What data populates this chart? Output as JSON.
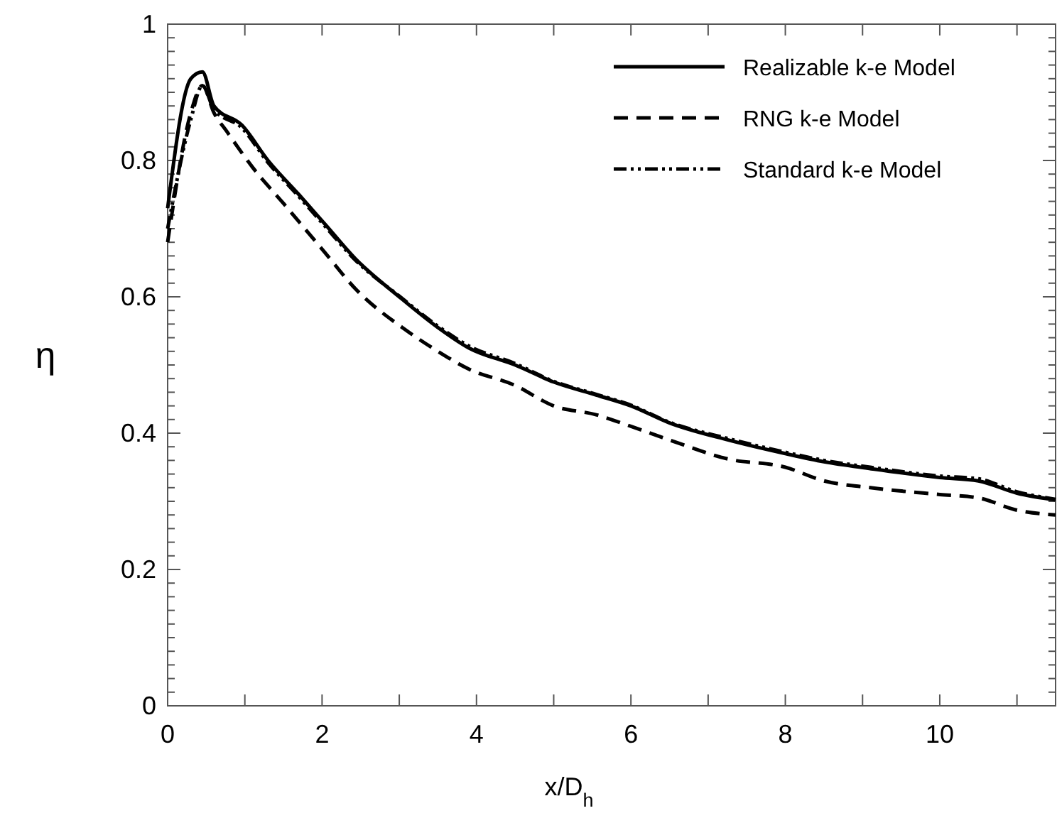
{
  "chart_data": {
    "type": "line",
    "xlabel": "x/D$_{h}$",
    "ylabel": "η",
    "xlim": [
      0,
      11.5
    ],
    "ylim": [
      0,
      1
    ],
    "xticks": [
      0,
      {
        "value": 1,
        "label": null
      },
      2,
      {
        "value": 3,
        "label": null
      },
      4,
      {
        "value": 5,
        "label": null
      },
      6,
      {
        "value": 7,
        "label": null
      },
      8,
      {
        "value": 9,
        "label": null
      },
      10,
      {
        "value": 11,
        "label": null
      }
    ],
    "yticks": [
      0,
      0.2,
      0.4,
      0.6,
      0.8,
      1
    ],
    "grid": false,
    "legend": "top right",
    "marker": "none",
    "series": [
      {
        "name": "Realizable k-e Model",
        "color": "#000000",
        "line_style": "solid",
        "x": [
          0,
          0.3,
          0.45,
          0.6,
          0.96,
          1.3,
          1.7,
          2.05,
          2.43,
          3,
          3.5,
          3.9,
          4.5,
          5,
          5.55,
          6,
          6.5,
          7.26,
          8,
          8.5,
          9.1,
          10,
          10.5,
          11,
          11.5
        ],
        "values": [
          0.73,
          0.92,
          0.93,
          0.88,
          0.852,
          0.8,
          0.75,
          0.705,
          0.656,
          0.6,
          0.555,
          0.525,
          0.5,
          0.475,
          0.456,
          0.44,
          0.415,
          0.39,
          0.37,
          0.358,
          0.348,
          0.335,
          0.33,
          0.312,
          0.302
        ]
      },
      {
        "name": "RNG k-e Model",
        "color": "#000000",
        "line_style": "dashed",
        "x": [
          0,
          0.3,
          0.45,
          0.6,
          0.77,
          1.1,
          1.5,
          2,
          2.43,
          3.1,
          3.5,
          3.9,
          4.5,
          5,
          5.55,
          6,
          6.5,
          7.26,
          8,
          8.5,
          9.1,
          10,
          10.5,
          11,
          11.5
        ],
        "values": [
          0.68,
          0.87,
          0.91,
          0.87,
          0.842,
          0.79,
          0.737,
          0.67,
          0.612,
          0.55,
          0.52,
          0.494,
          0.47,
          0.44,
          0.427,
          0.41,
          0.39,
          0.362,
          0.35,
          0.33,
          0.32,
          0.31,
          0.305,
          0.287,
          0.28
        ]
      },
      {
        "name": "Standard k-e Model",
        "color": "#000000",
        "line_style": "dashdot",
        "x": [
          0,
          0.3,
          0.45,
          0.6,
          0.96,
          1.3,
          1.7,
          2.05,
          2.43,
          3,
          3.5,
          3.9,
          4.5,
          5,
          5.55,
          6,
          6.5,
          7.26,
          8,
          8.5,
          9.1,
          10,
          10.5,
          11,
          11.5
        ],
        "values": [
          0.7,
          0.86,
          0.91,
          0.875,
          0.848,
          0.797,
          0.747,
          0.702,
          0.654,
          0.601,
          0.557,
          0.528,
          0.502,
          0.476,
          0.457,
          0.441,
          0.416,
          0.392,
          0.372,
          0.36,
          0.35,
          0.337,
          0.333,
          0.314,
          0.303
        ]
      }
    ]
  }
}
